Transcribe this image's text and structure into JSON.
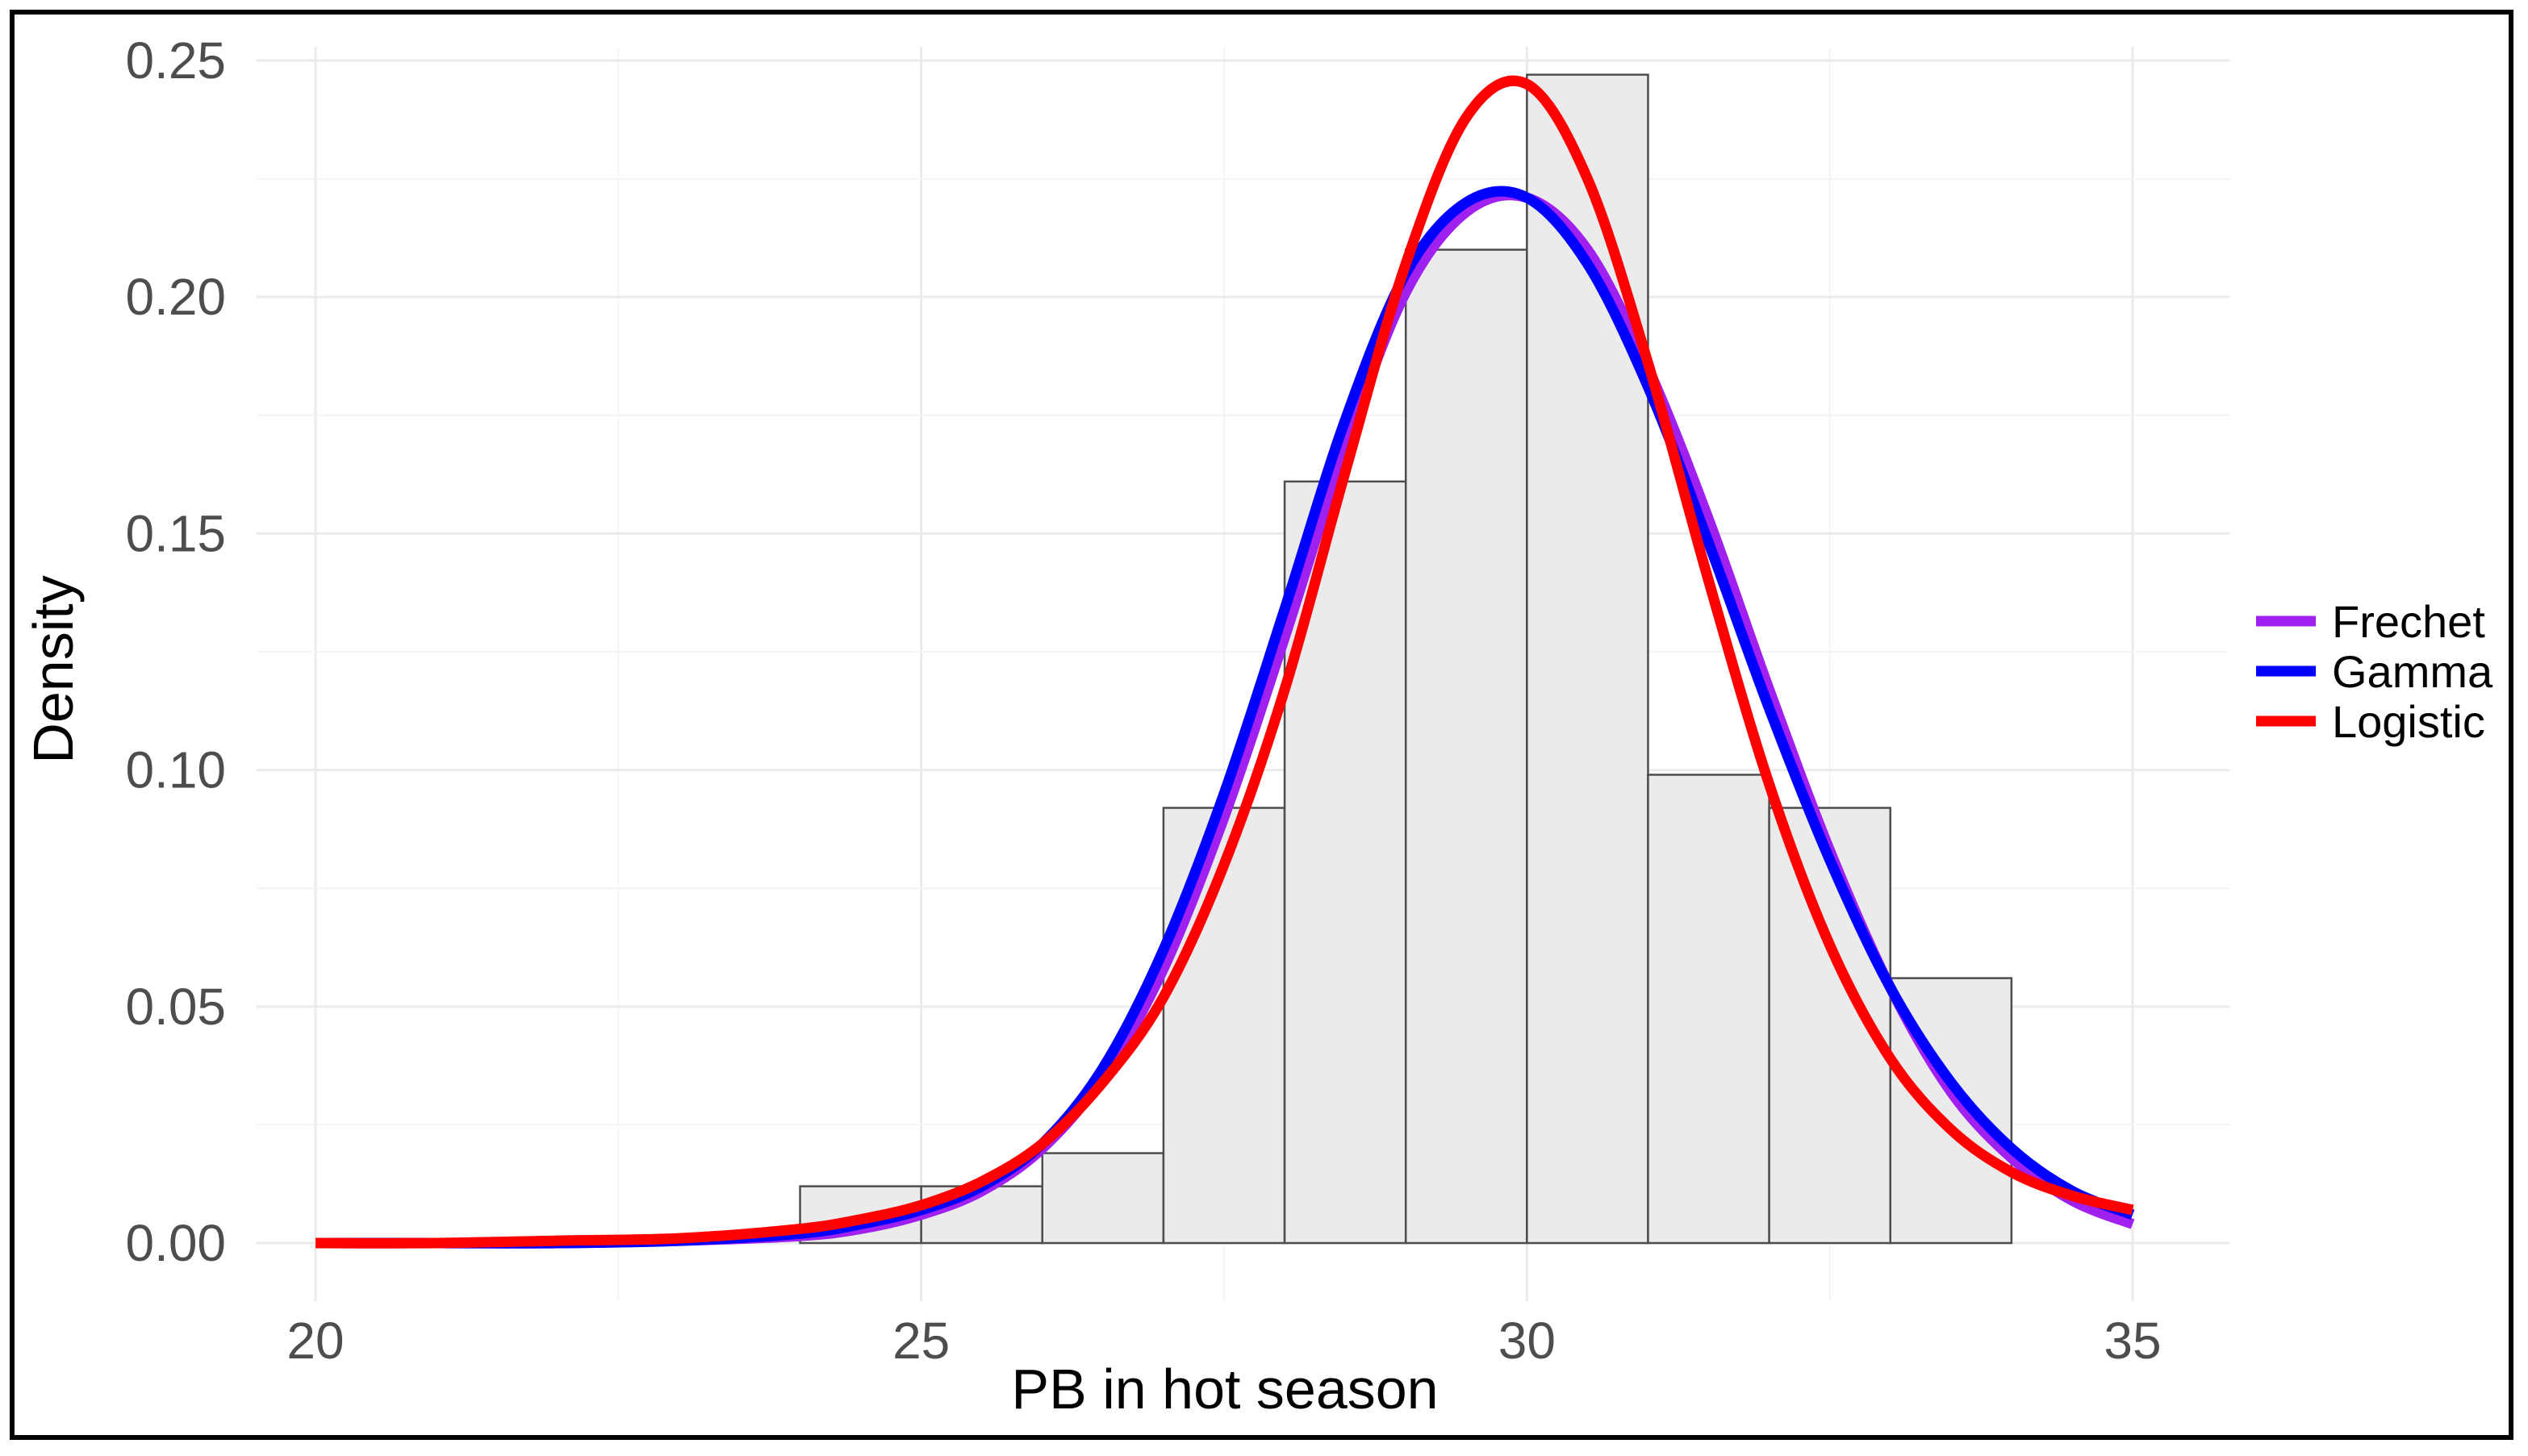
{
  "chart_data": {
    "type": "histogram_with_density_curves",
    "title": "",
    "xlabel": "PB in hot season",
    "ylabel": "Density",
    "xlim": [
      20,
      35
    ],
    "ylim": [
      0,
      0.25
    ],
    "x_ticks": [
      20,
      25,
      30,
      35
    ],
    "x_tick_labels": [
      "20",
      "25",
      "30",
      "35"
    ],
    "y_ticks": [
      0,
      0.05,
      0.1,
      0.15,
      0.2,
      0.25
    ],
    "y_tick_labels": [
      "0.00",
      "0.05",
      "0.10",
      "0.15",
      "0.20",
      "0.25"
    ],
    "grid": true,
    "legend_position": "right",
    "histogram": {
      "fill": "#ebebeb",
      "edge": "#4d4d4d",
      "bins": [
        {
          "x0": 24,
          "x1": 25,
          "density": 0.012
        },
        {
          "x0": 25,
          "x1": 26,
          "density": 0.012
        },
        {
          "x0": 26,
          "x1": 27,
          "density": 0.019
        },
        {
          "x0": 27,
          "x1": 28,
          "density": 0.092
        },
        {
          "x0": 28,
          "x1": 29,
          "density": 0.161
        },
        {
          "x0": 29,
          "x1": 30,
          "density": 0.21
        },
        {
          "x0": 30,
          "x1": 31,
          "density": 0.247
        },
        {
          "x0": 31,
          "x1": 32,
          "density": 0.099
        },
        {
          "x0": 32,
          "x1": 33,
          "density": 0.092
        },
        {
          "x0": 33,
          "x1": 34,
          "density": 0.056
        }
      ]
    },
    "series": [
      {
        "name": "Frechet",
        "color": "#a020f0",
        "x": [
          20,
          21,
          22,
          23,
          24,
          24.5,
          25,
          25.5,
          26,
          26.5,
          27,
          27.5,
          28,
          28.5,
          29,
          29.5,
          30,
          30.5,
          31,
          31.5,
          32,
          32.5,
          33,
          33.5,
          34,
          34.5,
          35
        ],
        "y": [
          0.0,
          0.0,
          0.0,
          0.0005,
          0.0015,
          0.003,
          0.006,
          0.011,
          0.02,
          0.035,
          0.058,
          0.09,
          0.128,
          0.168,
          0.201,
          0.218,
          0.221,
          0.21,
          0.185,
          0.153,
          0.117,
          0.083,
          0.054,
          0.032,
          0.018,
          0.009,
          0.004
        ]
      },
      {
        "name": "Gamma",
        "color": "#0000ff",
        "x": [
          20,
          21,
          22,
          23,
          24,
          24.5,
          25,
          25.5,
          26,
          26.5,
          27,
          27.5,
          28,
          28.5,
          29,
          29.5,
          30,
          30.5,
          31,
          31.5,
          32,
          32.5,
          33,
          33.5,
          34,
          34.5,
          35
        ],
        "y": [
          0.0,
          0.0,
          0.0,
          0.0005,
          0.002,
          0.004,
          0.007,
          0.012,
          0.021,
          0.037,
          0.062,
          0.095,
          0.134,
          0.174,
          0.205,
          0.22,
          0.221,
          0.207,
          0.181,
          0.148,
          0.113,
          0.081,
          0.054,
          0.034,
          0.02,
          0.011,
          0.006
        ]
      },
      {
        "name": "Logistic",
        "color": "#ff0000",
        "x": [
          20,
          21,
          22,
          23,
          24,
          24.5,
          25,
          25.5,
          26,
          26.5,
          27,
          27.5,
          28,
          28.5,
          29,
          29.5,
          30,
          30.5,
          31,
          31.5,
          32,
          32.5,
          33,
          33.5,
          34,
          34.5,
          35
        ],
        "y": [
          0.0,
          0.0,
          0.0005,
          0.001,
          0.003,
          0.005,
          0.008,
          0.013,
          0.021,
          0.034,
          0.052,
          0.08,
          0.117,
          0.163,
          0.207,
          0.238,
          0.245,
          0.225,
          0.186,
          0.14,
          0.097,
          0.063,
          0.039,
          0.024,
          0.015,
          0.01,
          0.007
        ]
      }
    ]
  }
}
